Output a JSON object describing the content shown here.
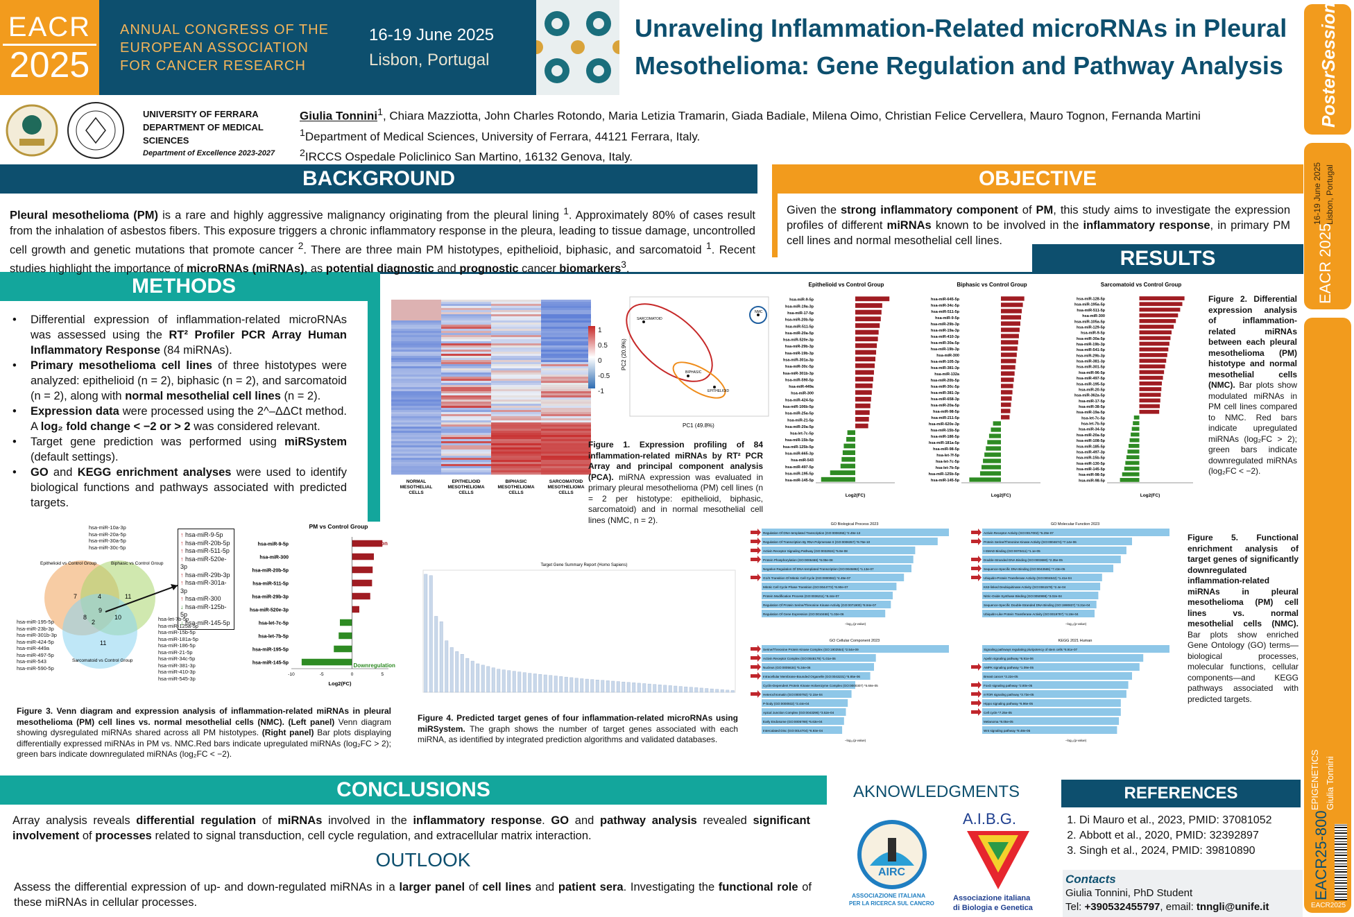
{
  "header": {
    "logo_top": "EACR",
    "logo_bottom": "2025",
    "congress_line1": "ANNUAL CONGRESS OF THE",
    "congress_line2": "EUROPEAN ASSOCIATION",
    "congress_line3": "FOR CANCER RESEARCH",
    "dates": "16-19 June 2025",
    "city": "Lisbon, Portugal",
    "title_line1": "Unraveling Inflammation-Related microRNAs in Pleural",
    "title_line2": "Mesothelioma: Gene Regulation and Pathway Analysis"
  },
  "sidebar": {
    "brand": "PosterSessionOnline",
    "dates": "16-19 June 2025",
    "city": "Lisbon, Portugal",
    "logo": "EACR 2025",
    "topic": "EPIGENETICS",
    "author": "Giulia Tonnini",
    "code": "EACR25-800",
    "footer": "EACR2025"
  },
  "affiliation": {
    "uni_line1": "UNIVERSITY OF FERRARA",
    "uni_line2": "DEPARTMENT OF MEDICAL",
    "uni_line3": "SCIENCES",
    "uni_line4": "Department of Excellence 2023-2027",
    "author_main": "Giulia Tonnini",
    "authors_rest": ", Chiara Mazziotta, John Charles Rotondo, Maria Letizia Tramarin, Giada Badiale, Milena Oimo, Christian Felice Cervellera, Mauro Tognon, Fernanda Martini",
    "aff1": "Department of Medical Sciences, University of Ferrara, 44121 Ferrara, Italy.",
    "aff2": "IRCCS Ospedale Policlinico San Martino, 16132 Genova, Italy."
  },
  "sections": {
    "background": "BACKGROUND",
    "objective": "OBJECTIVE",
    "results": "RESULTS",
    "methods": "METHODS",
    "conclusions": "CONCLUSIONS",
    "ack": "AKNOWLEDGMENTS",
    "references": "REFERENCES",
    "outlook": "OUTLOOK"
  },
  "background": {
    "p1": "Pleural mesothelioma (PM)",
    "p2": " is a rare and highly aggressive malignancy originating from the pleural lining ",
    "sup1": "1",
    "p3": ". Approximately 80% of cases result from the inhalation of asbestos fibers. This exposure triggers a chronic inflammatory response in the pleura, leading to tissue damage, uncontrolled cell growth and genetic mutations that promote cancer ",
    "sup2": "2",
    "p4": ". There are three main PM histotypes, epithelioid, biphasic, and sarcomatoid ",
    "sup3": "1",
    "p5": ". Recent studies highlight the importance of ",
    "b1": "microRNAs (miRNAs)",
    "p6": ", as ",
    "b2": "potential diagnostic",
    "p7": " and ",
    "b3": "prognostic",
    "p8": " cancer ",
    "b4": "biomarkers",
    "sup4": "3",
    "p9": "."
  },
  "objective": {
    "t1": "Given the ",
    "b1": "strong inflammatory component",
    "t2": " of ",
    "b2": "PM",
    "t3": ", this study aims to investigate the expression profiles of different ",
    "b3": "miRNAs",
    "t4": " known to be involved in the ",
    "b4": "inflammatory response",
    "t5": ", in primary PM cell lines and normal mesothelial cell lines."
  },
  "methods": {
    "m1a": "Differential expression of inflammation-related microRNAs was assessed using the ",
    "m1b": "RT² Profiler PCR Array Human Inflammatory Response",
    "m1c": " (84 miRNAs).",
    "m2a": "Primary mesothelioma cell lines",
    "m2b": " of three histotypes were analyzed: epithelioid (n = 2), biphasic (n = 2), and sarcomatoid (n = 2), along with ",
    "m2c": "normal mesothelial cell lines",
    "m2d": " (n = 2).",
    "m3a": "Expression data",
    "m3b": " were processed using the 2^–ΔΔCt method. A ",
    "m3c": "log₂ fold change < −2 or > 2",
    "m3d": " was considered relevant.",
    "m4a": "Target gene prediction was performed using ",
    "m4b": "miRSystem",
    "m4c": " (default settings).",
    "m5a": "GO",
    "m5b": " and ",
    "m5c": "KEGG enrichment analyses",
    "m5d": " were used to identify biological functions and pathways associated with predicted targets."
  },
  "fig1": {
    "heatmap_cols": [
      "NORMAL MESOTHELIAL CELLS",
      "EPITHELIOID MESOTHELIOMA CELLS",
      "BIPHASIC MESOTHELIOMA CELLS",
      "SARCOMATOID MESOTHELIOMA CELLS"
    ],
    "legend_ticks": [
      "1",
      "0.5",
      "0",
      "-0.5",
      "-1"
    ],
    "pca_x": "PC1 (49.8%)",
    "pca_y": "PC2 (20.9%)",
    "pca_labels": [
      "SARCOMATOID",
      "BIPHASIC",
      "EPITHELIOID",
      "NMC"
    ],
    "cap_b": "Figure 1. Expression profiling of 84 inflammation-related miRNAs by RT² PCR Array and principal component analysis (PCA).",
    "cap": " miRNA expression was evaluated in primary pleural mesothelioma (PM) cell lines (n = 2 per histotype: epithelioid, biphasic, sarcomatoid) and in normal mesothelial cell lines (NMC, n = 2)."
  },
  "fig2": {
    "titles": [
      "Epithelioid vs Control Group",
      "Biphasic vs Control Group",
      "Sarcomatoid vs Control Group"
    ],
    "xlabel": "Log2(FC)",
    "cap_b": "Figure 2. Differential expression analysis of inflammation-related miRNAs between each pleural mesothelioma (PM) histotype and normal mesothelial cells (NMC).",
    "cap": " Bar plots show modulated miRNAs in PM cell lines compared to NMC. Red bars indicate upregulated miRNAs (log₂FC > 2); green bars indicate downregulated miRNAs (log₂FC < −2)."
  },
  "fig3": {
    "venn_labels": [
      "Epithelioid vs Control Group",
      "Biphasic vs Control Group",
      "Sarcomatoid vs Control Group"
    ],
    "venn_counts": [
      "7",
      "4",
      "11",
      "2",
      "9",
      "8",
      "10",
      "11"
    ],
    "list_top": [
      "hsa-miR-10a-3p",
      "hsa-miR-20a-5p",
      "hsa-miR-30a-5p",
      "hsa-miR-30c-5p"
    ],
    "list_left": [
      "hsa-miR-195-5p",
      "hsa-miR-23b-3p",
      "hsa-miR-301b-3p",
      "hsa-miR-424-5p",
      "hsa-miR-449a",
      "hsa-miR-497-5p",
      "hsa-miR-543",
      "hsa-miR-590-5p"
    ],
    "list_right": [
      "hsa-let-7b-5p",
      "hsa-miR-125a-5p",
      "hsa-miR-15b-5p",
      "hsa-miR-181a-5p",
      "hsa-miR-186-5p",
      "hsa-miR-21-5p",
      "hsa-miR-34c-5p",
      "hsa-miR-381-3p",
      "hsa-miR-410-3p",
      "hsa-miR-545-3p"
    ],
    "box_items": [
      "hsa-miR-9-5p",
      "hsa-miR-20b-5p",
      "hsa-miR-511-5p",
      "hsa-miR-520e-3p",
      "hsa-miR-29b-3p",
      "hsa-miR-301a-3p",
      "hsa-miR-300",
      "hsa-miR-125b-5p",
      "hsa-miR-145-5p"
    ],
    "bar_title": "PM vs Control Group",
    "up_label": "Upregulation",
    "down_label": "Downregulation",
    "xlabel": "Log2(FC)",
    "cap_b": "Figure 3. Venn diagram and expression analysis of inflammation-related miRNAs in pleural mesothelioma (PM) cell lines vs. normal mesothelial cells (NMC). (Left panel)",
    "cap1": " Venn diagram showing dysregulated miRNAs shared across all PM histotypes. ",
    "cap_b2": "(Right panel)",
    "cap2": " Bar plots displaying differentially expressed miRNAs in PM vs. NMC.Red bars indicate upregulated miRNAs (log₂FC > 2); green bars indicate downregulated miRNAs (log₂FC < −2)."
  },
  "chart_data": [
    {
      "type": "bar",
      "title": "PM vs Control Group",
      "xlabel": "Log2(FC)",
      "xlim": [
        -10,
        6
      ],
      "categories": [
        "hsa-miR-9-5p",
        "hsa-miR-300",
        "hsa-miR-20b-5p",
        "hsa-miR-511-5p",
        "hsa-miR-29b-3p",
        "hsa-miR-520e-3p",
        "hsa-let-7c-5p",
        "hsa-let-7b-5p",
        "hsa-miR-195-5p",
        "hsa-miR-145-5p"
      ],
      "values": [
        5.0,
        3.6,
        3.4,
        3.3,
        3.0,
        1.2,
        -2.0,
        -2.2,
        -3.0,
        -8.3
      ]
    },
    {
      "type": "bar",
      "title": "Target Gene Summary Report (Homo Sapiens)",
      "values": [
        870,
        860,
        560,
        520,
        380,
        330,
        300,
        280,
        250,
        230,
        210,
        200,
        190,
        180,
        170,
        165,
        160,
        155,
        150,
        145,
        140,
        136,
        132,
        128,
        124,
        120,
        116,
        112,
        108,
        104,
        100,
        97,
        94,
        91,
        88,
        85,
        82,
        79,
        76,
        73,
        70,
        67,
        64,
        61,
        58,
        55,
        52,
        49,
        46,
        43,
        40,
        37,
        34,
        31,
        28,
        25,
        22,
        19,
        16,
        13
      ]
    }
  ],
  "fig4": {
    "title": "Target Gene Summary Report (Homo Sapiens)",
    "cap_b": "Figure 4. Predicted target genes of four inflammation-related microRNAs using miRSystem.",
    "cap": " The graph shows the number of target genes associated with each miRNA, as identified by integrated prediction algorithms and validated databases."
  },
  "fig5": {
    "titles": [
      "GO Biological Process 2023",
      "GO Molecular Function 2023",
      "GO Cellular Component 2023",
      "KEGG 2021 Human"
    ],
    "xlabel": "−log₁₀(p-value)",
    "bp": [
      "Regulation Of DNA-templated Transcription (GO:0006355) *2.49e-13",
      "Regulation Of Transcription By RNA Polymerase II (GO:0006357) *8.76e-10",
      "Activin Receptor Signaling Pathway (GO:0032924) *5.9e-08",
      "Protein Phosphorylation (GO:0006468) *6.09e-08",
      "Negative Regulation Of DNA-templated Transcription (GO:0045892) *1.13e-07",
      "G1/S Transition Of Mitotic Cell Cycle (GO:0000082) *4.49e-07",
      "Mitotic Cell Cycle Phase Transition (GO:0044772) *6.90e-07",
      "Protein Modification Process (GO:0036211) *8.44e-07",
      "Regulation Of Protein Serine/Threonine Kinase Activity (GO:0071900) *8.94e-07",
      "Regulation Of Gene Expression (GO:0010468) *1.02e-06"
    ],
    "mf": [
      "Activin Receptor Activity (GO:0017002) *5.29e-07",
      "Protein Serine/Threonine Kinase Activity (GO:0004674) *7.14e-06",
      "I-SMAD Binding (GO:0070411) *1.1e-05",
      "Double-Stranded DNA Binding (GO:0003690) *2.35e-05",
      "Sequence-Specific DNA Binding (GO:0043565) *7.43e-05",
      "Ubiquitin-Protein Transferase Activity (GO:0004842) *1.41e-04",
      "K63-linked Deubiquitinase Activity (GO:0061578) *2.4e-04",
      "Nitric-Oxide Synthase Binding (GO:0050998) *3.02e-04",
      "Sequence-Specific Double-Stranded DNA Binding (GO:1990837) *3.31e-04",
      "Ubiquitin-Like Protein Transferase Activity (GO:0019787) *4.19e-04"
    ],
    "cc": [
      "Serine/Threonine Protein Kinase Complex (GO:1902554) *2.54e-09",
      "Activin Receptor Complex (GO:0048179) *1.01e-06",
      "Nucleus (GO:0005634) *5.34e-06",
      "Intracellular Membrane-Bounded Organelle (GO:0043231) *5.85e-06",
      "Cyclin-Dependent Protein Kinase Holoenzyme Complex (GO:0000307) *5.68e-05",
      "Heterochromatin (GO:0000792) *2.15e-04",
      "P-body (GO:0000932) *2.44e-04",
      "Apical Junction Complex (GO:0043296) *3.52e-04",
      "Early Endosome (GO:0005769) *6.63e-04",
      "Intercalated Disc (GO:0014704) *6.93e-04"
    ],
    "kegg": [
      "Signaling pathways regulating pluripotency of stem cells *6.91e-07",
      "Apelin signaling pathway *6.91e-06",
      "AMPK signaling pathway *1.09e-05",
      "Breast cancer *2.22e-05",
      "FoxO signaling pathway *2.80e-05",
      "mTOR signaling pathway *3.73e-05",
      "Hippo signaling pathway *6.96e-05",
      "Cell cycle *7.25e-05",
      "Melanoma *8.05e-05",
      "Wnt signaling pathway *8.48e-05"
    ],
    "cap_b": "Figure 5. Functional enrichment analysis of target genes of significantly downregulated inflammation-related miRNAs in pleural mesothelioma (PM) cell lines vs. normal mesothelial cells (NMC).",
    "cap": " Bar plots show enriched Gene Ontology (GO) terms—biological processes, molecular functions, cellular components—and KEGG pathways associated with predicted targets."
  },
  "conclusions": {
    "t1": "Array analysis reveals ",
    "b1": "differential regulation",
    "t2": " of ",
    "b2": "miRNAs",
    "t3": " involved in the ",
    "b3": "inflammatory response",
    "t4": ". ",
    "b4": "GO",
    "t5": " and ",
    "b5": "pathway analysis",
    "t6": " revealed ",
    "b6": "significant involvement",
    "t7": " of ",
    "b7": "processes",
    "t8": " related to signal transduction, cell cycle regulation, and extracellular matrix interaction."
  },
  "outlook": {
    "t1": "Assess the differential expression of up- and down-regulated miRNAs in a ",
    "b1": "larger panel",
    "t2": " of ",
    "b2": "cell lines",
    "t3": " and ",
    "b3": "patient sera",
    "t4": ". Investigating the ",
    "b4": "functional role",
    "t5": " of these miRNAs in cellular processes."
  },
  "ack": {
    "airc": "AIRC",
    "airc_sub1": "ASSOCIAZIONE ITALIANA",
    "airc_sub2": "PER LA RICERCA SUL CANCRO",
    "aibg": "A.I.B.G.",
    "aibg_sub1": "Associazione italiana",
    "aibg_sub2": "di Biologia e Genetica"
  },
  "references": [
    "Di Mauro et al., 2023, PMID: 37081052",
    "Abbott et al., 2020, PMID: 32392897",
    "Singh et al., 2024, PMID: 39810890"
  ],
  "contacts": {
    "title": "Contacts",
    "name": "Giulia Tonnini, PhD Student",
    "tel_label": "Tel: ",
    "tel": "+390532455797",
    "email_label": ", email: ",
    "email": "tnngli@unife.it"
  },
  "colors": {
    "navy": "#0d4f6e",
    "orange": "#f29b1d",
    "teal": "#13a69c",
    "up": "#a01c22",
    "down": "#2e8b23",
    "enrich": "#8ec7e8",
    "arrow": "#c0262c"
  }
}
